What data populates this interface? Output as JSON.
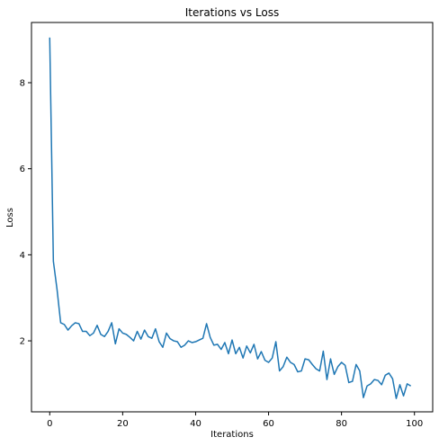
{
  "chart_data": {
    "type": "line",
    "title": "Iterations vs Loss",
    "xlabel": "Iterations",
    "ylabel": "Loss",
    "xlim": [
      -5,
      105
    ],
    "ylim": [
      0.35,
      9.4
    ],
    "xticks": [
      0,
      20,
      40,
      60,
      80,
      100
    ],
    "yticks": [
      2,
      4,
      6,
      8
    ],
    "xtick_labels": [
      "0",
      "20",
      "40",
      "60",
      "80",
      "100"
    ],
    "ytick_labels": [
      "2",
      "4",
      "6",
      "8"
    ],
    "grid": false,
    "line_color": "#1f77b4",
    "series": [
      {
        "x": [
          0,
          1,
          2,
          3,
          4,
          5,
          6,
          7,
          8,
          9,
          10,
          11,
          12,
          13,
          14,
          15,
          16,
          17,
          18,
          19,
          20,
          21,
          22,
          23,
          24,
          25,
          26,
          27,
          28,
          29,
          30,
          31,
          32,
          33,
          34,
          35,
          36,
          37,
          38,
          39,
          40,
          41,
          42,
          43,
          44,
          45,
          46,
          47,
          48,
          49,
          50,
          51,
          52,
          53,
          54,
          55,
          56,
          57,
          58,
          59,
          60,
          61,
          62,
          63,
          64,
          65,
          66,
          67,
          68,
          69,
          70,
          71,
          72,
          73,
          74,
          75,
          76,
          77,
          78,
          79,
          80,
          81,
          82,
          83,
          84,
          85,
          86,
          87,
          88,
          89,
          90,
          91,
          92,
          93,
          94,
          95,
          96,
          97,
          98,
          99
        ],
        "values": [
          9.05,
          3.85,
          3.2,
          2.42,
          2.38,
          2.25,
          2.35,
          2.42,
          2.4,
          2.22,
          2.22,
          2.12,
          2.18,
          2.36,
          2.15,
          2.1,
          2.22,
          2.42,
          1.93,
          2.28,
          2.18,
          2.15,
          2.08,
          2.0,
          2.22,
          2.04,
          2.25,
          2.1,
          2.06,
          2.28,
          1.98,
          1.85,
          2.18,
          2.05,
          2.0,
          1.98,
          1.85,
          1.9,
          2.0,
          1.96,
          1.98,
          2.02,
          2.06,
          2.4,
          2.08,
          1.9,
          1.92,
          1.8,
          1.96,
          1.7,
          2.02,
          1.7,
          1.85,
          1.6,
          1.88,
          1.72,
          1.92,
          1.58,
          1.75,
          1.55,
          1.5,
          1.6,
          1.98,
          1.3,
          1.4,
          1.62,
          1.5,
          1.45,
          1.28,
          1.3,
          1.58,
          1.56,
          1.45,
          1.35,
          1.3,
          1.76,
          1.1,
          1.58,
          1.22,
          1.4,
          1.5,
          1.43,
          1.03,
          1.06,
          1.45,
          1.3,
          0.68,
          0.95,
          1.0,
          1.1,
          1.08,
          0.98,
          1.2,
          1.25,
          1.12,
          0.66,
          0.98,
          0.72,
          1.0,
          0.95
        ]
      }
    ]
  }
}
